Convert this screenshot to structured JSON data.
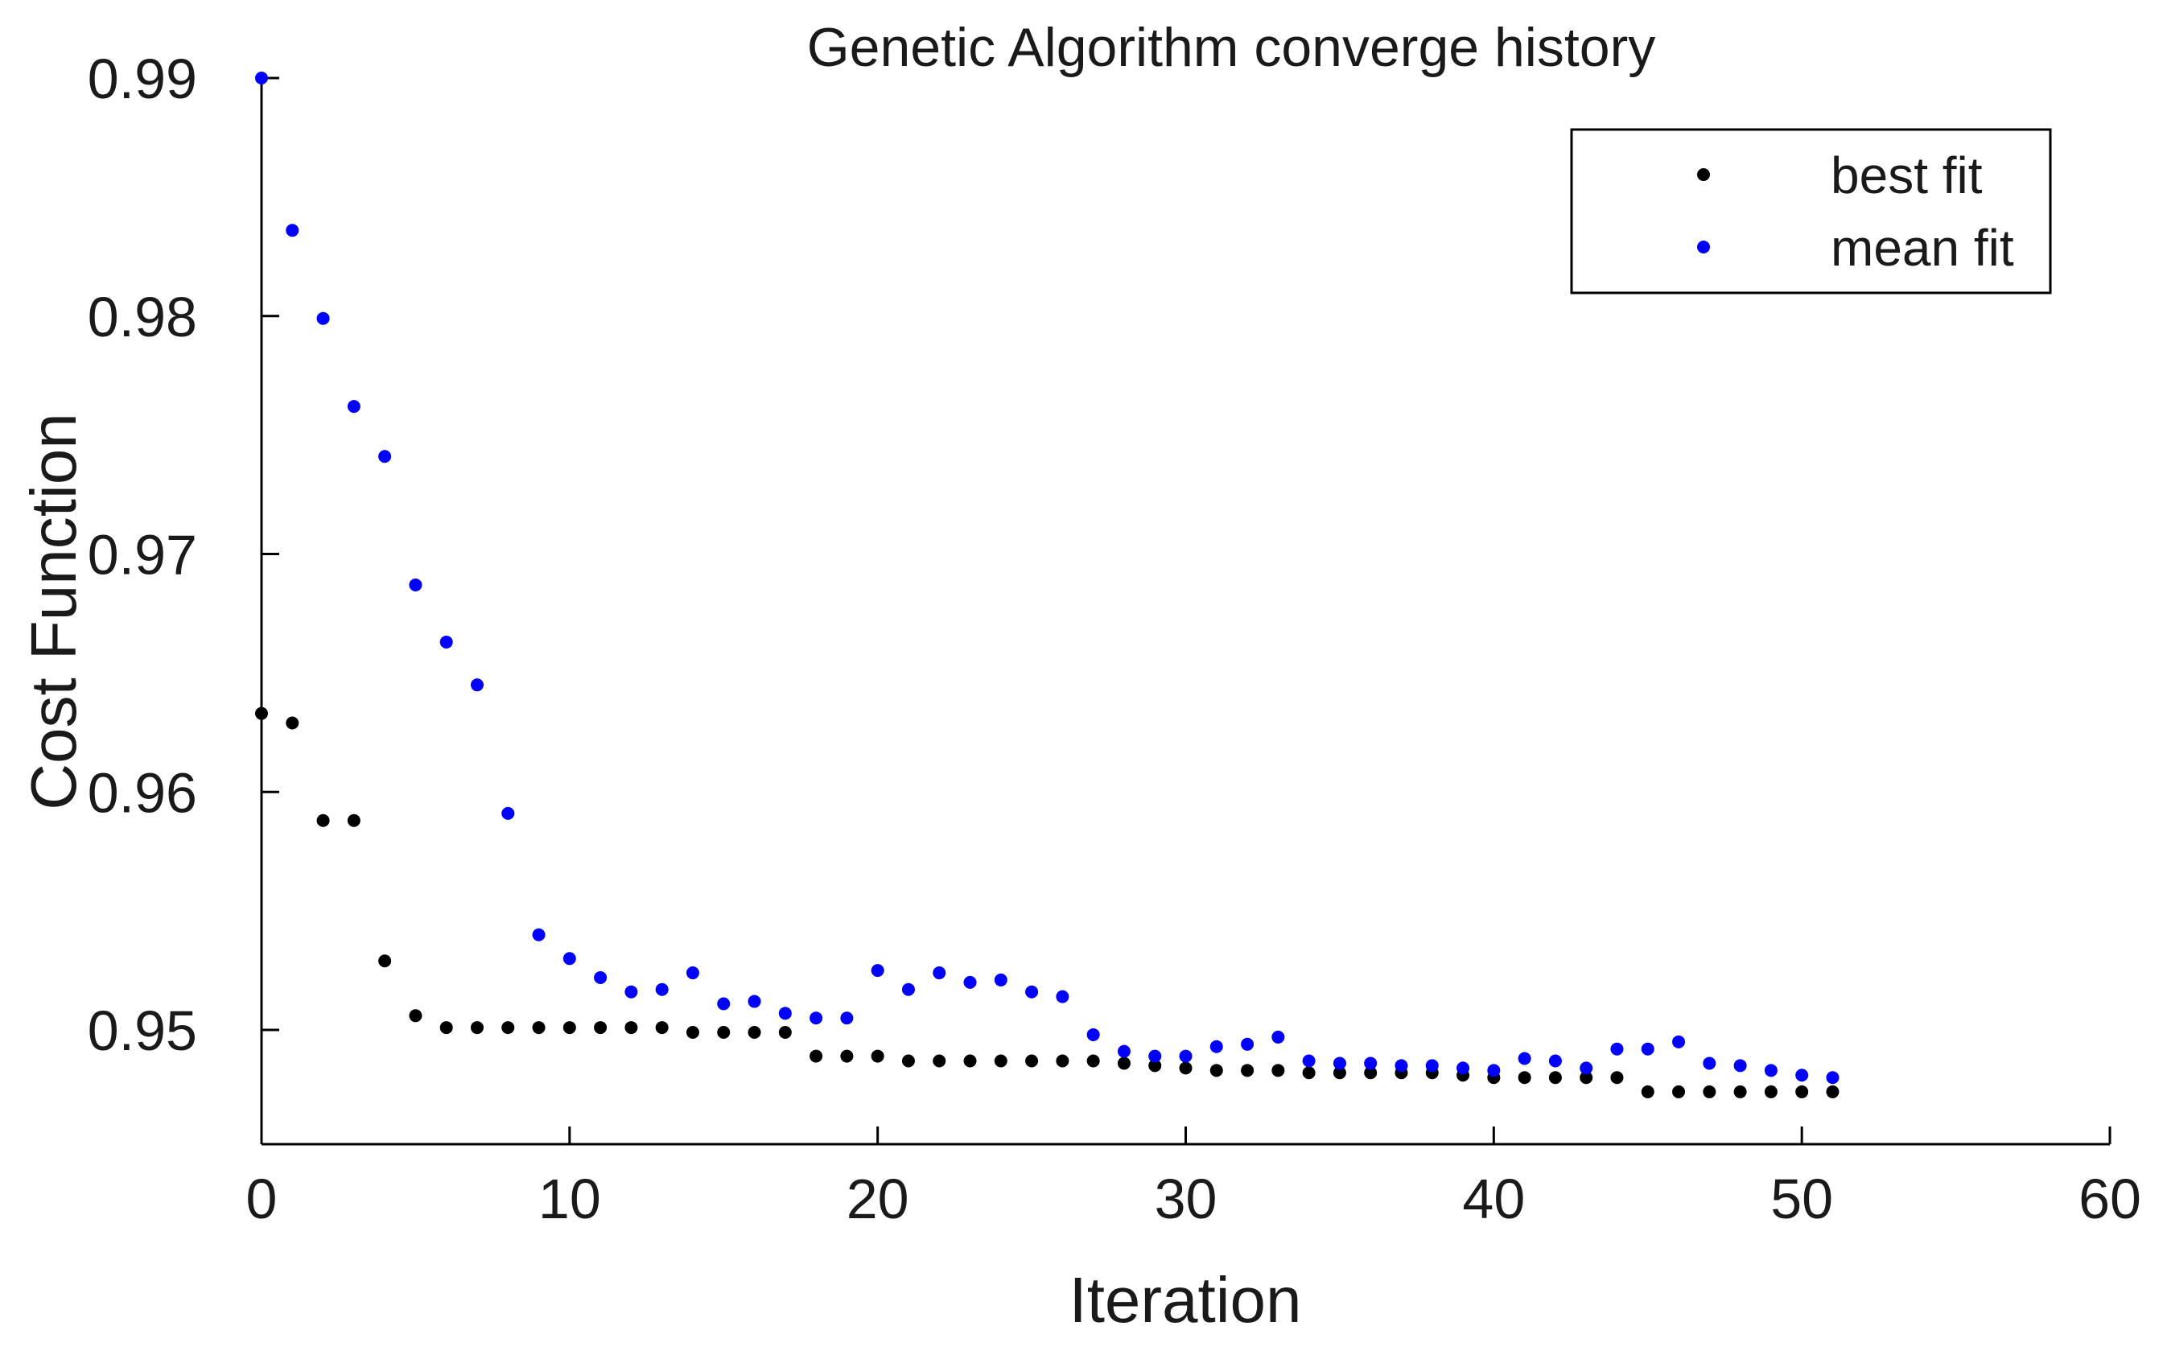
{
  "chart_data": {
    "type": "scatter",
    "title": "Genetic Algorithm converge history",
    "xlabel": "Iteration",
    "ylabel": "Cost Function",
    "xlim": [
      0,
      60
    ],
    "ylim": [
      0.9452,
      0.99
    ],
    "xticks": [
      0,
      10,
      20,
      30,
      40,
      50,
      60
    ],
    "xtick_labels": [
      "0",
      "10",
      "20",
      "30",
      "40",
      "50",
      "60"
    ],
    "yticks": [
      0.95,
      0.96,
      0.97,
      0.98,
      0.99
    ],
    "ytick_labels": [
      "0.95",
      "0.96",
      "0.97",
      "0.98",
      "0.99"
    ],
    "grid": false,
    "legend_position": "top-right",
    "series": [
      {
        "name": "best fit",
        "color": "#000000",
        "x": [
          0,
          1,
          2,
          3,
          4,
          5,
          6,
          7,
          8,
          9,
          10,
          11,
          12,
          13,
          14,
          15,
          16,
          17,
          18,
          19,
          20,
          21,
          22,
          23,
          24,
          25,
          26,
          27,
          28,
          29,
          30,
          31,
          32,
          33,
          34,
          35,
          36,
          37,
          38,
          39,
          40,
          41,
          42,
          43,
          44,
          45,
          46,
          47,
          48,
          49,
          50,
          51
        ],
        "y": [
          0.9633,
          0.9629,
          0.9588,
          0.9588,
          0.9529,
          0.9506,
          0.9501,
          0.9501,
          0.9501,
          0.9501,
          0.9501,
          0.9501,
          0.9501,
          0.9501,
          0.9499,
          0.9499,
          0.9499,
          0.9499,
          0.9489,
          0.9489,
          0.9489,
          0.9487,
          0.9487,
          0.9487,
          0.9487,
          0.9487,
          0.9487,
          0.9487,
          0.9486,
          0.9485,
          0.9484,
          0.9483,
          0.9483,
          0.9483,
          0.9482,
          0.9482,
          0.9482,
          0.9482,
          0.9482,
          0.9481,
          0.948,
          0.948,
          0.948,
          0.948,
          0.948,
          0.9474,
          0.9474,
          0.9474,
          0.9474,
          0.9474,
          0.9474,
          0.9474
        ]
      },
      {
        "name": "mean fit",
        "color": "#0000ff",
        "x": [
          0,
          1,
          2,
          3,
          4,
          5,
          6,
          7,
          8,
          9,
          10,
          11,
          12,
          13,
          14,
          15,
          16,
          17,
          18,
          19,
          20,
          21,
          22,
          23,
          24,
          25,
          26,
          27,
          28,
          29,
          30,
          31,
          32,
          33,
          34,
          35,
          36,
          37,
          38,
          39,
          40,
          41,
          42,
          43,
          44,
          45,
          46,
          47,
          48,
          49,
          50,
          51
        ],
        "y": [
          0.99,
          0.9836,
          0.9799,
          0.9762,
          0.9741,
          0.9687,
          0.9663,
          0.9645,
          0.9591,
          0.954,
          0.953,
          0.9522,
          0.9516,
          0.9517,
          0.9524,
          0.9511,
          0.9512,
          0.9507,
          0.9505,
          0.9505,
          0.9525,
          0.9517,
          0.9524,
          0.952,
          0.9521,
          0.9516,
          0.9514,
          0.9498,
          0.9491,
          0.9489,
          0.9489,
          0.9493,
          0.9494,
          0.9497,
          0.9487,
          0.9486,
          0.9486,
          0.9485,
          0.9485,
          0.9484,
          0.9483,
          0.9488,
          0.9487,
          0.9484,
          0.9492,
          0.9492,
          0.9495,
          0.9486,
          0.9485,
          0.9483,
          0.9481,
          0.948
        ]
      }
    ]
  }
}
